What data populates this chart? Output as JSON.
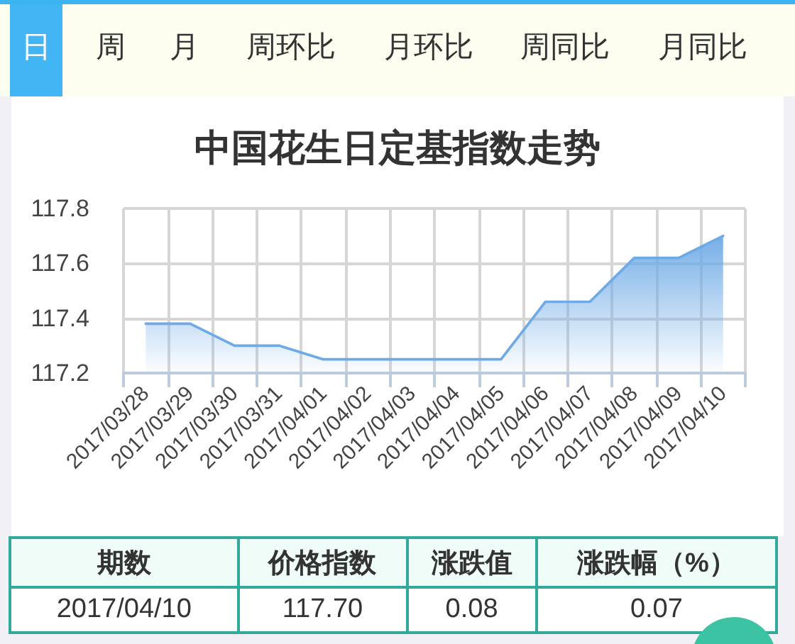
{
  "chart_data": [
    {
      "type": "other",
      "categories": [
        "日",
        "周",
        "月",
        "周环比",
        "月环比",
        "周同比",
        "月同比"
      ]
    },
    {
      "type": "area",
      "title": "中国花生日定基指数走势",
      "categories": [
        "2017/03/28",
        "2017/03/29",
        "2017/03/30",
        "2017/03/31",
        "2017/04/01",
        "2017/04/02",
        "2017/04/03",
        "2017/04/04",
        "2017/04/05",
        "2017/04/06",
        "2017/04/07",
        "2017/04/08",
        "2017/04/09",
        "2017/04/10"
      ],
      "values": [
        117.38,
        117.38,
        117.3,
        117.3,
        117.25,
        117.25,
        117.25,
        117.25,
        117.25,
        117.46,
        117.46,
        117.62,
        117.62,
        117.7
      ],
      "color": "#6eaae6",
      "ylim": [
        117.2,
        117.8
      ],
      "yticks": [
        117.2,
        117.4,
        117.6,
        117.8
      ],
      "grid": true,
      "marker": "none",
      "line_style": "solid"
    },
    {
      "type": "other",
      "categories": [
        "期数",
        "价格指数",
        "涨跌值",
        "涨跌幅（%）"
      ],
      "cell_labels": [
        [
          "2017/04/10",
          "117.70",
          "0.08",
          "0.07"
        ]
      ]
    }
  ]
}
